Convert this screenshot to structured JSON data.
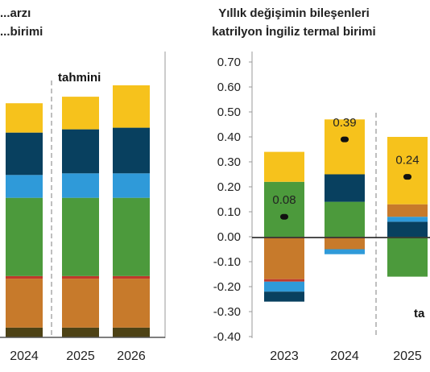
{
  "colors": {
    "yellow": "#F6C21C",
    "navy": "#08405F",
    "blue": "#2F9AD9",
    "green": "#4C9A3C",
    "red": "#C0392B",
    "orange": "#C77A2B",
    "darkolive": "#4D4215"
  },
  "chart_data": [
    {
      "type": "bar",
      "stacked": true,
      "title": "...arzı",
      "subtitle": "...birimi",
      "annotation": "tahmini",
      "categories": [
        "2024",
        "2025",
        "2026"
      ],
      "series": [
        {
          "color": "darkolive",
          "values": [
            0.3,
            0.3,
            0.3
          ]
        },
        {
          "color": "orange",
          "values": [
            1.5,
            1.5,
            1.5
          ]
        },
        {
          "color": "red",
          "values": [
            0.08,
            0.08,
            0.08
          ]
        },
        {
          "color": "green",
          "values": [
            2.4,
            2.4,
            2.4
          ]
        },
        {
          "color": "blue",
          "values": [
            0.7,
            0.75,
            0.75
          ]
        },
        {
          "color": "navy",
          "values": [
            1.3,
            1.35,
            1.4
          ]
        },
        {
          "color": "yellow",
          "values": [
            0.9,
            1.0,
            1.3
          ]
        }
      ]
    },
    {
      "type": "bar",
      "stacked": true,
      "title": "Yıllık değişimin bileşenleri",
      "subtitle": "katrilyon İngiliz termal birimi",
      "annotation": "ta",
      "categories": [
        "2023",
        "2024",
        "2025"
      ],
      "ylim": [
        -0.4,
        0.7
      ],
      "yticks": [
        "0.70",
        "0.60",
        "0.50",
        "0.40",
        "0.30",
        "0.20",
        "0.10",
        "0.00",
        "-0.10",
        "-0.20",
        "-0.30",
        "-0.40"
      ],
      "series": [
        {
          "color": "green",
          "values": [
            0.22,
            0.14,
            -0.16
          ]
        },
        {
          "color": "navy",
          "values": [
            0.0,
            0.11,
            0.06
          ]
        },
        {
          "color": "blue",
          "values": [
            0.0,
            0.0,
            0.02
          ]
        },
        {
          "color": "orange",
          "values": [
            -0.17,
            -0.05,
            0.05
          ]
        },
        {
          "color": "red",
          "values": [
            -0.01,
            0.0,
            0.0
          ]
        },
        {
          "color": "blue",
          "values": [
            -0.04,
            -0.02,
            0.0
          ]
        },
        {
          "color": "navy",
          "values": [
            -0.04,
            0.0,
            0.0
          ]
        },
        {
          "color": "yellow",
          "values": [
            0.12,
            0.22,
            0.27
          ]
        }
      ],
      "net_change": [
        0.08,
        0.39,
        0.24
      ],
      "net_labels": [
        "0.08",
        "0.39",
        "0.24"
      ]
    }
  ]
}
